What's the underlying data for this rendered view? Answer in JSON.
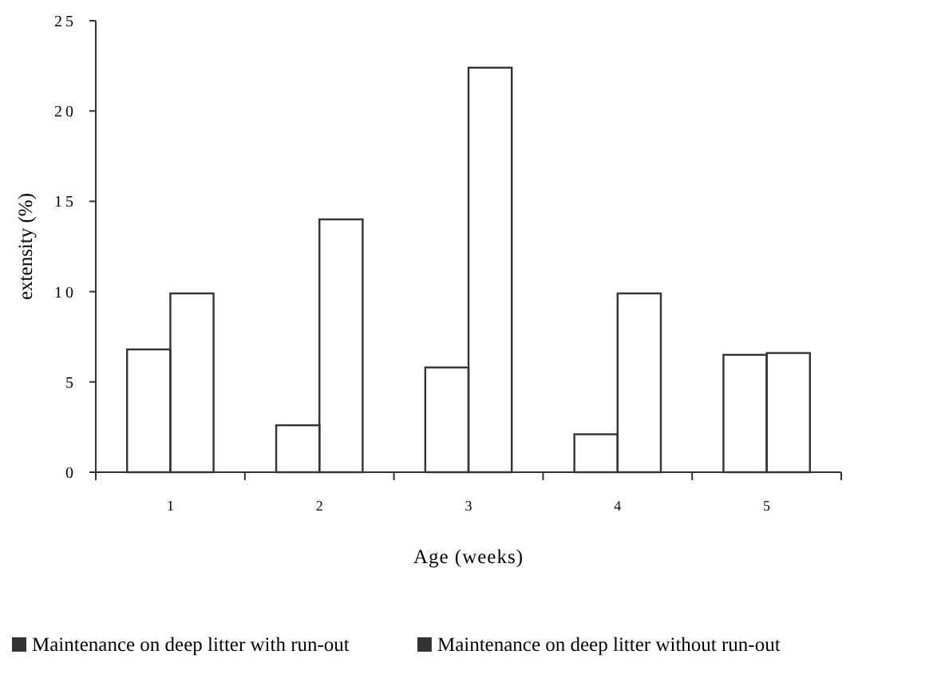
{
  "chart_data": {
    "type": "bar",
    "xlabel": "Age (weeks)",
    "ylabel": "extensity (%)",
    "categories": [
      "1",
      "2",
      "3",
      "4",
      "5"
    ],
    "series": [
      {
        "name": "Maintenance on deep litter with run-out",
        "color": "#333333",
        "values": [
          6.8,
          2.6,
          5.8,
          2.1,
          6.5
        ]
      },
      {
        "name": "Maintenance on deep litter without run-out",
        "color": "#333333",
        "values": [
          9.9,
          14.0,
          22.4,
          9.9,
          6.6
        ]
      }
    ],
    "ylim": [
      0,
      25
    ],
    "yticks": [
      0,
      5,
      10,
      15,
      20,
      25
    ],
    "grid": false,
    "legend": "bottom"
  }
}
